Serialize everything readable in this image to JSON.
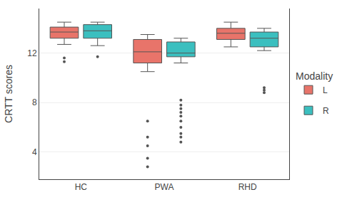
{
  "chart_data": {
    "type": "box",
    "y_label": "CRTT scores",
    "legend_title": "Modality",
    "categories": [
      "HC",
      "PWA",
      "RHD"
    ],
    "series": [
      {
        "name": "L",
        "color": "#E8746A",
        "q1": [
          13.2,
          11.2,
          13.1
        ],
        "median": [
          13.7,
          12.1,
          13.6
        ],
        "q3": [
          14.1,
          13.1,
          14.0
        ],
        "whisker_low": [
          12.7,
          10.5,
          12.5
        ],
        "whisker_high": [
          14.5,
          13.5,
          14.5
        ],
        "outliers": [
          [
            11.6,
            11.3
          ],
          [
            6.5,
            5.2,
            4.5,
            3.5,
            2.8
          ],
          []
        ]
      },
      {
        "name": "R",
        "color": "#3BBFBF",
        "q1": [
          13.2,
          11.7,
          12.5
        ],
        "median": [
          13.8,
          12.0,
          13.2
        ],
        "q3": [
          14.3,
          12.9,
          13.7
        ],
        "whisker_low": [
          12.6,
          11.2,
          12.2
        ],
        "whisker_high": [
          14.5,
          13.2,
          14.0
        ],
        "outliers": [
          [
            11.7
          ],
          [
            8.2,
            7.8,
            7.5,
            7.2,
            6.9,
            6.5,
            6.0,
            5.5,
            5.2,
            4.8
          ],
          [
            9.2,
            9.0,
            8.8
          ]
        ]
      }
    ],
    "ylim": [
      1.8,
      15.6
    ],
    "yticks": [
      4,
      8,
      12
    ],
    "grid": true,
    "legend": "right"
  }
}
